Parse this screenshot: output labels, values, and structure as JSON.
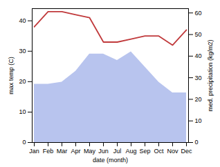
{
  "chart_data": {
    "type": "line",
    "xlabel": "date (month)",
    "ylabel": "max temp (C)",
    "y2label": "med. precipitation (kg/m2)",
    "categories": [
      "Jan",
      "Feb",
      "Mar",
      "Apr",
      "May",
      "Jun",
      "Jul",
      "Aug",
      "Sep",
      "Oct",
      "Nov",
      "Dec"
    ],
    "series": [
      {
        "type": "area",
        "axis": "y2",
        "color": "#b8c4ee",
        "values": [
          27,
          27,
          28,
          33,
          41,
          41,
          38,
          42,
          35,
          28,
          23,
          23
        ]
      },
      {
        "type": "line",
        "color": "#c0393b",
        "values": [
          38,
          43,
          43,
          42,
          41,
          33,
          33,
          34,
          35,
          35,
          32,
          37
        ]
      }
    ],
    "ylim": [
      0,
      44
    ],
    "yticks": [
      0,
      10,
      20,
      30,
      40
    ],
    "y2lim": [
      0,
      62
    ],
    "y2ticks": [
      0,
      10,
      20,
      30,
      40,
      50,
      60
    ]
  }
}
